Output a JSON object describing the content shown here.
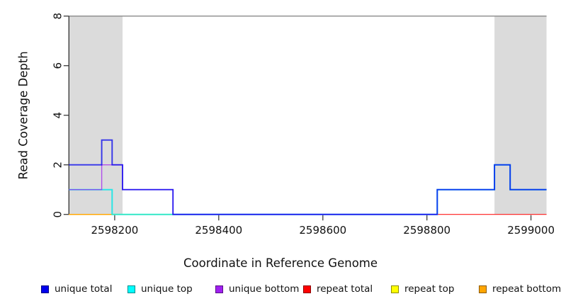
{
  "figure": {
    "background": "#FFFFFF",
    "text_color": "#111111",
    "axis_line_color": "#3c3c3c",
    "top_border_color": "#8a8a8a"
  },
  "chart_data": {
    "type": "line",
    "subtype": "step-coverage",
    "title": "",
    "xlabel": "Coordinate in Reference Genome",
    "ylabel": "Read Coverage Depth",
    "xlim": [
      2598112,
      2599030
    ],
    "ylim": [
      0,
      8
    ],
    "xticks": [
      "2598200",
      "2598400",
      "2598600",
      "2598800",
      "2599000"
    ],
    "xtick_values": [
      2598200,
      2598400,
      2598600,
      2598800,
      2599000
    ],
    "yticks": [
      "0",
      "2",
      "4",
      "6",
      "8"
    ],
    "ytick_values": [
      0,
      2,
      4,
      6,
      8
    ],
    "grid": false,
    "legend_position": "bottom",
    "shaded_regions": [
      {
        "name": "repeat-region-left",
        "x0": 2598112,
        "x1": 2598215,
        "color": "#DBDBDB"
      },
      {
        "name": "repeat-region-right",
        "x0": 2598930,
        "x1": 2599030,
        "color": "#DBDBDB"
      }
    ],
    "series": [
      {
        "name": "repeat total",
        "color": "#FF0000",
        "width": 1.2,
        "opacity": 0.9,
        "points": [
          [
            2598112,
            0
          ],
          [
            2599030,
            0
          ]
        ]
      },
      {
        "name": "repeat top",
        "color": "#FFFF00",
        "width": 1.2,
        "opacity": 1,
        "points": [
          [
            2598112,
            0
          ],
          [
            2598312,
            0
          ]
        ]
      },
      {
        "name": "repeat bottom",
        "color": "#FFA500",
        "width": 1.4,
        "opacity": 1,
        "points": [
          [
            2598112,
            0
          ],
          [
            2598195,
            0
          ]
        ]
      },
      {
        "name": "unique top",
        "color": "#00E8E8",
        "width": 2,
        "opacity": 0.8,
        "points": [
          [
            2598112,
            1
          ],
          [
            2598195,
            1
          ],
          [
            2598195,
            0
          ],
          [
            2598820,
            0
          ],
          [
            2598820,
            1
          ],
          [
            2598930,
            1
          ],
          [
            2598930,
            2
          ],
          [
            2598960,
            2
          ],
          [
            2598960,
            1
          ],
          [
            2599030,
            1
          ]
        ]
      },
      {
        "name": "unique bottom",
        "color": "#A020F0",
        "width": 1.4,
        "opacity": 0.75,
        "points": [
          [
            2598112,
            1
          ],
          [
            2598175,
            1
          ],
          [
            2598175,
            2
          ],
          [
            2598215,
            2
          ],
          [
            2598215,
            1
          ],
          [
            2598312,
            1
          ],
          [
            2598312,
            0
          ],
          [
            2598820,
            0
          ]
        ]
      },
      {
        "name": "unique total",
        "color": "#0000EE",
        "width": 1.9,
        "opacity": 0.76,
        "points": [
          [
            2598112,
            2
          ],
          [
            2598175,
            2
          ],
          [
            2598175,
            3
          ],
          [
            2598195,
            3
          ],
          [
            2598195,
            2
          ],
          [
            2598215,
            2
          ],
          [
            2598215,
            1
          ],
          [
            2598312,
            1
          ],
          [
            2598312,
            0
          ],
          [
            2598820,
            0
          ],
          [
            2598820,
            1
          ],
          [
            2598930,
            1
          ],
          [
            2598930,
            2
          ],
          [
            2598960,
            2
          ],
          [
            2598960,
            1
          ],
          [
            2599030,
            1
          ]
        ]
      }
    ],
    "legend": [
      {
        "label": "unique total",
        "color": "#0000EE"
      },
      {
        "label": "unique top",
        "color": "#00FFFF"
      },
      {
        "label": "unique bottom",
        "color": "#A020F0"
      },
      {
        "label": "repeat total",
        "color": "#FF0000"
      },
      {
        "label": "repeat top",
        "color": "#FFFF00"
      },
      {
        "label": "repeat bottom",
        "color": "#FFA500"
      }
    ]
  }
}
